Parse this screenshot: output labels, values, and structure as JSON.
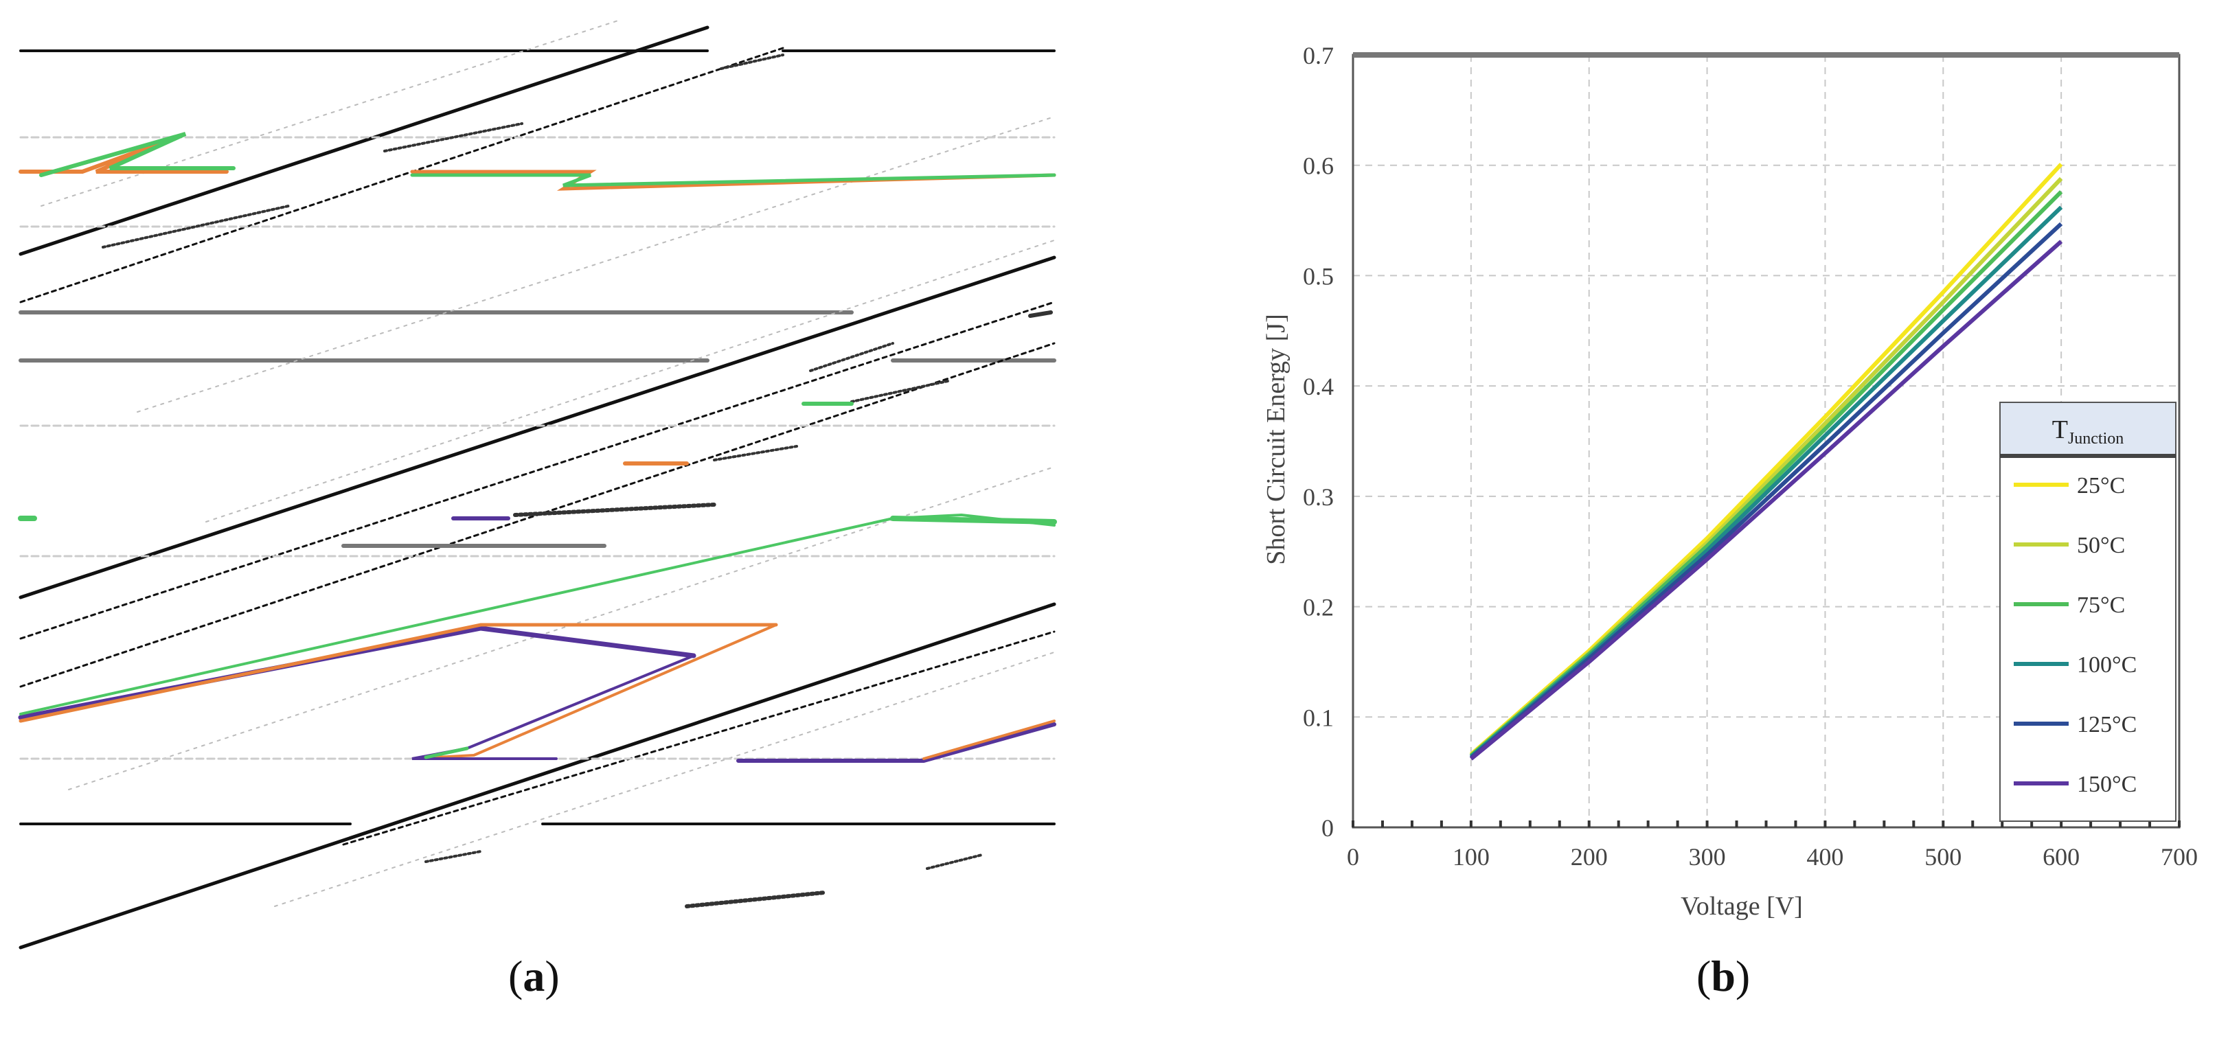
{
  "panel_labels": {
    "a": "a",
    "b": "b"
  },
  "chart_data": [
    {
      "panel": "a",
      "type": "line",
      "title": "",
      "xlabel": "",
      "ylabel": "",
      "grid": true,
      "note": "Panel (a) is rendered as a corrupted/garbled raster with no readable axes or labels; only the trace colors are discernible.",
      "series": [
        {
          "color": "#e8823a"
        },
        {
          "color": "#4cc764"
        },
        {
          "color": "#55349a"
        }
      ]
    },
    {
      "panel": "b",
      "type": "line",
      "title": "",
      "xlabel": "Voltage [V]",
      "ylabel": "Short Circuit Energy [J]",
      "xlim": [
        0,
        700
      ],
      "ylim": [
        0,
        0.7
      ],
      "xticks": [
        0,
        100,
        200,
        300,
        400,
        500,
        600,
        700
      ],
      "yticks": [
        0,
        0.1,
        0.2,
        0.3,
        0.4,
        0.5,
        0.6,
        0.7
      ],
      "grid": true,
      "legend": {
        "title_main": "T",
        "title_sub": "Junction",
        "placement": "bottom-right"
      },
      "x": [
        100,
        200,
        300,
        400,
        500,
        600
      ],
      "series": [
        {
          "name": "25°C",
          "color": "#f5e61e",
          "values": [
            0.066,
            0.16,
            0.262,
            0.372,
            0.485,
            0.601
          ]
        },
        {
          "name": "50°C",
          "color": "#c2d43a",
          "values": [
            0.065,
            0.158,
            0.258,
            0.366,
            0.476,
            0.588
          ]
        },
        {
          "name": "75°C",
          "color": "#4dbd5a",
          "values": [
            0.065,
            0.157,
            0.255,
            0.361,
            0.469,
            0.576
          ]
        },
        {
          "name": "100°C",
          "color": "#1f8a8a",
          "values": [
            0.064,
            0.155,
            0.251,
            0.355,
            0.459,
            0.562
          ]
        },
        {
          "name": "125°C",
          "color": "#2c4c96",
          "values": [
            0.063,
            0.153,
            0.247,
            0.347,
            0.448,
            0.547
          ]
        },
        {
          "name": "150°C",
          "color": "#5a36a0",
          "values": [
            0.062,
            0.15,
            0.243,
            0.339,
            0.436,
            0.531
          ]
        }
      ]
    }
  ]
}
